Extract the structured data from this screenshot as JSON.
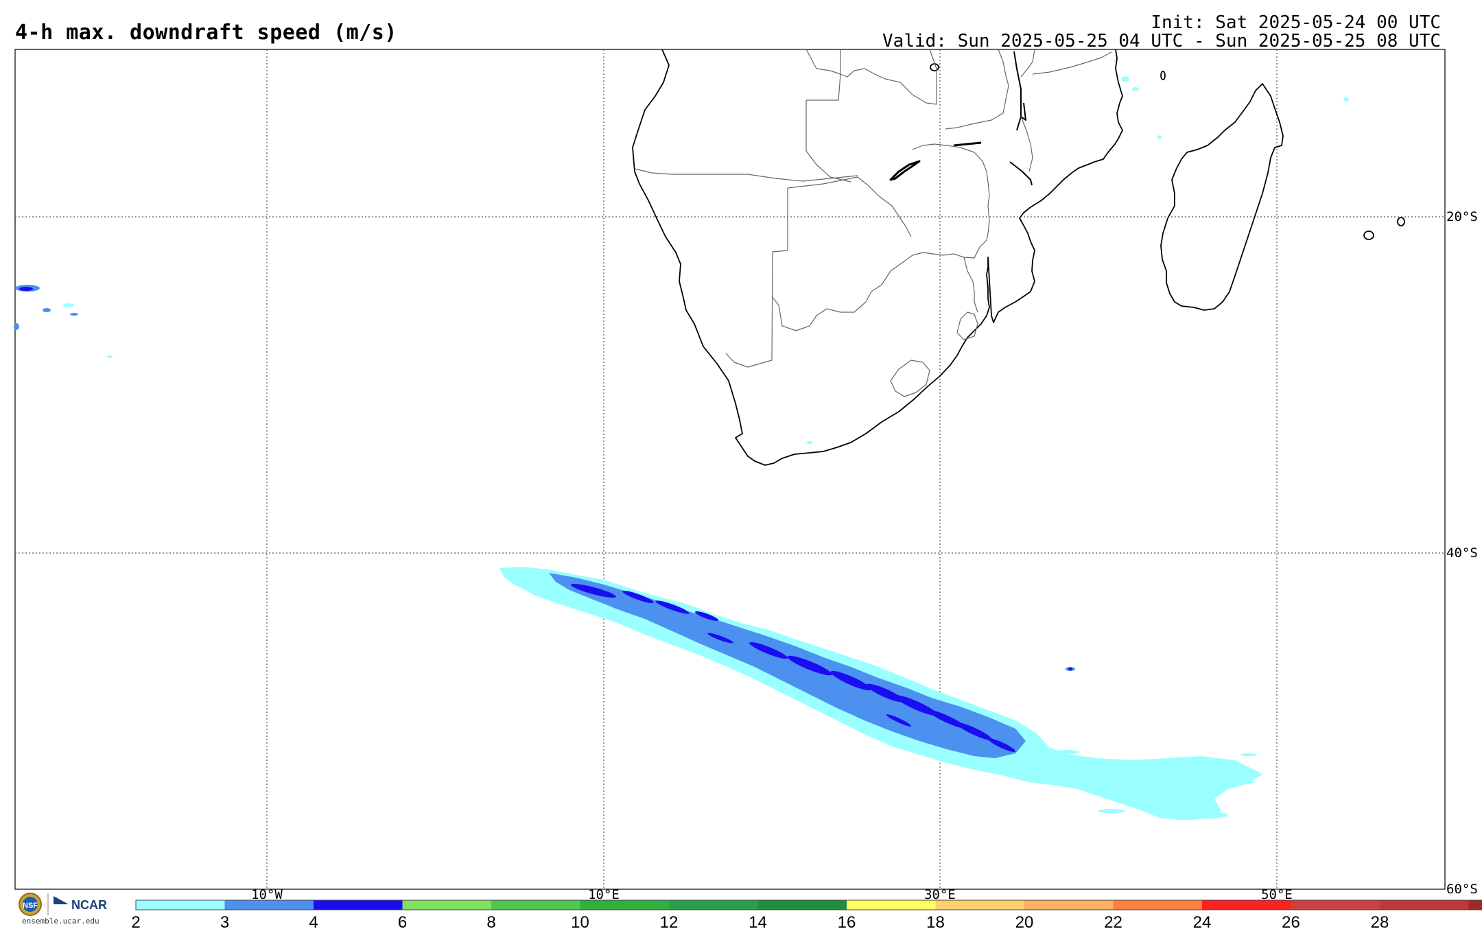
{
  "title": "4-h max. downdraft speed (m/s)",
  "init_line": "Init: Sat 2025-05-24 00 UTC",
  "valid_line": "Valid: Sun 2025-05-25 04 UTC - Sun 2025-05-25 08 UTC",
  "lon_labels": [
    "10°W",
    "10°E",
    "30°E",
    "50°E"
  ],
  "lat_labels": [
    "20°S",
    "40°S",
    "60°S"
  ],
  "colorbar": {
    "colors": [
      "#99ffff",
      "#4c90f0",
      "#1a0df0",
      "#80e060",
      "#50c850",
      "#30b040",
      "#28a048",
      "#208c40",
      "#ffff60",
      "#ffd070",
      "#ffb060",
      "#ff8040",
      "#ff2020",
      "#d04040",
      "#c03838",
      "#a02828",
      "#e010e0",
      "#c000d0",
      "#9060d0"
    ],
    "labels": [
      "2",
      "3",
      "4",
      "6",
      "8",
      "10",
      "12",
      "14",
      "16",
      "18",
      "20",
      "22",
      "24",
      "26",
      "28"
    ]
  },
  "logos": {
    "ncar": "NCAR",
    "nsf": "NSF"
  },
  "site": "ensemble.ucar.edu"
}
